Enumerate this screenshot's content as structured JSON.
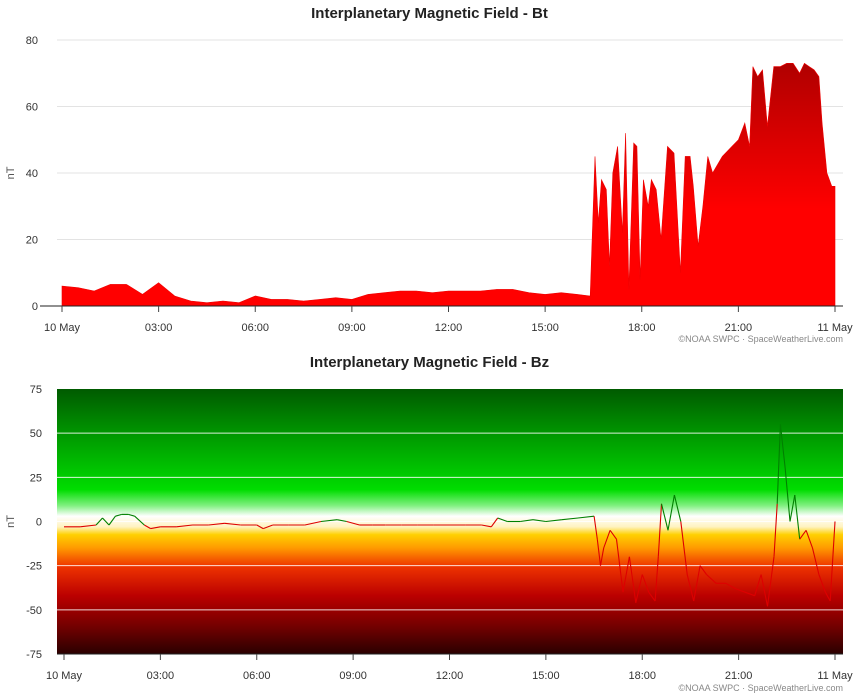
{
  "charts": {
    "bt": {
      "title": "Interplanetary Magnetic Field - Bt",
      "ylabel": "nT",
      "yticks": [
        "0",
        "20",
        "40",
        "60",
        "80"
      ],
      "xticks": [
        "10 May",
        "03:00",
        "06:00",
        "09:00",
        "12:00",
        "15:00",
        "18:00",
        "21:00",
        "11 May"
      ],
      "credit": "©NOAA SWPC · SpaceWeatherLive.com"
    },
    "bz": {
      "title": "Interplanetary Magnetic Field - Bz",
      "ylabel": "nT",
      "yticks": [
        "75",
        "50",
        "25",
        "0",
        "-25",
        "-50",
        "-75"
      ],
      "xticks": [
        "10 May",
        "03:00",
        "06:00",
        "09:00",
        "12:00",
        "15:00",
        "18:00",
        "21:00",
        "11 May"
      ],
      "credit": "©NOAA SWPC · SpaceWeatherLive.com"
    }
  },
  "chart_data": [
    {
      "type": "area",
      "title": "Interplanetary Magnetic Field - Bt",
      "xlabel": "",
      "ylabel": "nT",
      "x_unit": "hours since 10 May 00:00 UTC",
      "xlim": [
        0,
        24
      ],
      "ylim": [
        0,
        80
      ],
      "grid": true,
      "colors": {
        "low": "#ff0000",
        "high": "#b00000"
      },
      "x": [
        0,
        0.5,
        1.0,
        1.5,
        2.0,
        2.5,
        3.0,
        3.5,
        4.0,
        4.5,
        5.0,
        5.5,
        6.0,
        6.5,
        7.0,
        7.5,
        8.0,
        8.5,
        9.0,
        9.5,
        10.0,
        10.5,
        11.0,
        11.5,
        12.0,
        12.5,
        13.0,
        13.5,
        14.0,
        14.5,
        15.0,
        15.5,
        16.0,
        16.4,
        16.55,
        16.65,
        16.75,
        16.9,
        17.0,
        17.1,
        17.25,
        17.4,
        17.5,
        17.6,
        17.75,
        17.85,
        17.95,
        18.05,
        18.2,
        18.3,
        18.45,
        18.6,
        18.8,
        19.0,
        19.2,
        19.35,
        19.5,
        19.6,
        19.75,
        19.9,
        20.05,
        20.2,
        20.5,
        20.8,
        21.0,
        21.2,
        21.35,
        21.45,
        21.6,
        21.75,
        21.9,
        22.1,
        22.3,
        22.5,
        22.7,
        22.9,
        23.05,
        23.2,
        23.35,
        23.5,
        23.6,
        23.75,
        23.9,
        24.0
      ],
      "y": [
        6,
        5.5,
        4.5,
        6.5,
        6.5,
        3.5,
        7,
        3,
        1.5,
        1,
        1.5,
        1,
        3,
        2,
        2,
        1.5,
        2,
        2.5,
        2,
        3.5,
        4,
        4.5,
        4.5,
        4,
        4.5,
        4.5,
        4.5,
        5,
        5,
        4,
        3.5,
        4,
        3.5,
        3,
        45,
        25,
        38,
        35,
        12,
        40,
        48,
        22,
        52,
        5,
        49,
        48,
        8,
        38,
        30,
        38,
        35,
        20,
        48,
        46,
        10,
        45,
        45,
        36,
        18,
        30,
        45,
        40,
        45,
        48,
        50,
        55,
        48,
        72,
        69,
        71,
        54,
        72,
        72,
        73,
        73,
        70,
        73,
        72,
        71,
        69,
        55,
        40,
        36,
        36
      ]
    },
    {
      "type": "line",
      "title": "Interplanetary Magnetic Field - Bz",
      "xlabel": "",
      "ylabel": "nT",
      "x_unit": "hours since 10 May 00:00 UTC",
      "xlim": [
        0,
        24
      ],
      "ylim": [
        -75,
        75
      ],
      "grid": true,
      "colors": {
        "positive": "#008000",
        "negative": "#dd0000"
      },
      "x": [
        0,
        0.5,
        1.0,
        1.2,
        1.4,
        1.6,
        1.8,
        2.0,
        2.2,
        2.5,
        2.7,
        3.0,
        3.5,
        4.0,
        4.5,
        5.0,
        5.5,
        6.0,
        6.2,
        6.5,
        7.0,
        7.5,
        8.0,
        8.5,
        8.8,
        9.2,
        9.6,
        10.0,
        10.5,
        11.0,
        11.5,
        12.0,
        12.5,
        13.0,
        13.3,
        13.5,
        13.8,
        14.2,
        14.6,
        15.0,
        15.5,
        16.0,
        16.5,
        16.6,
        16.7,
        16.8,
        17.0,
        17.2,
        17.4,
        17.6,
        17.8,
        18.0,
        18.2,
        18.4,
        18.5,
        18.6,
        18.8,
        19.0,
        19.2,
        19.4,
        19.6,
        19.8,
        20.0,
        20.3,
        20.6,
        20.9,
        21.2,
        21.5,
        21.7,
        21.9,
        22.1,
        22.2,
        22.3,
        22.45,
        22.6,
        22.75,
        22.9,
        23.1,
        23.3,
        23.5,
        23.7,
        23.85,
        24.0
      ],
      "y": [
        -3,
        -3,
        -2,
        2,
        -2,
        3,
        4,
        4,
        3,
        -2,
        -4,
        -3,
        -3,
        -2,
        -2,
        -1,
        -2,
        -2,
        -4,
        -2,
        -2,
        -2,
        0,
        1,
        0,
        -2,
        -2,
        -2,
        -2,
        -2,
        -2,
        -2,
        -2,
        -2,
        -3,
        2,
        0,
        0,
        1,
        0,
        1,
        2,
        3,
        -10,
        -25,
        -15,
        -5,
        -10,
        -40,
        -20,
        -46,
        -30,
        -40,
        -45,
        -20,
        10,
        -5,
        15,
        0,
        -30,
        -45,
        -25,
        -30,
        -35,
        -35,
        -38,
        -40,
        -42,
        -30,
        -48,
        -20,
        10,
        55,
        30,
        0,
        15,
        -10,
        -5,
        -15,
        -30,
        -40,
        -45,
        0
      ]
    }
  ]
}
